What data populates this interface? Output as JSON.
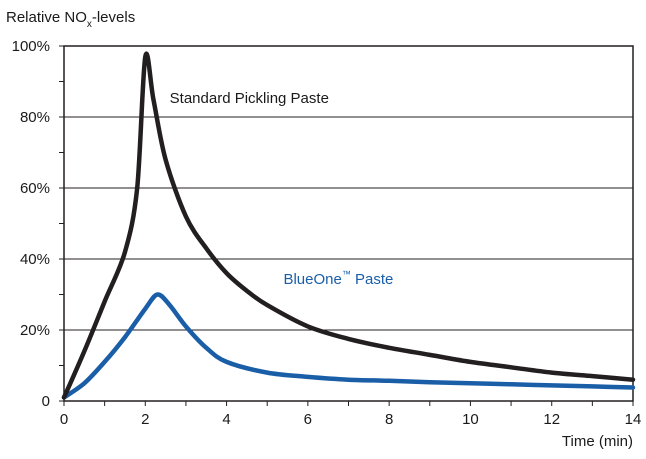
{
  "chart_data": {
    "type": "line",
    "ylabel": "Relative NO",
    "ylabel_sub": "x",
    "ylabel_suffix": "-levels",
    "xlabel": "Time (min)",
    "xlim": [
      0,
      14
    ],
    "ylim": [
      0,
      100
    ],
    "x_ticks": [
      0,
      2,
      4,
      6,
      8,
      10,
      12,
      14
    ],
    "x_tick_labels": [
      "0",
      "2",
      "4",
      "6",
      "8",
      "10",
      "12",
      "14"
    ],
    "y_ticks": [
      0,
      20,
      40,
      60,
      80,
      100
    ],
    "y_tick_labels": [
      "0",
      "20%",
      "40%",
      "60%",
      "80%",
      "100%"
    ],
    "grid": "horizontal",
    "series": [
      {
        "name": "Standard Pickling Paste",
        "color": "#231f20",
        "x": [
          0,
          0.5,
          1,
          1.5,
          1.8,
          2.0,
          2.2,
          2.5,
          3,
          3.5,
          4,
          4.5,
          5,
          6,
          7,
          8,
          9,
          10,
          11,
          12,
          13,
          14
        ],
        "y": [
          1,
          14,
          28,
          42,
          60,
          97,
          85,
          68,
          52,
          43,
          36,
          31,
          27,
          21,
          17.5,
          15,
          13,
          11,
          9.5,
          8,
          7,
          6
        ]
      },
      {
        "name": "BlueOne™ Paste",
        "color": "#1a5ea8",
        "x": [
          0,
          0.5,
          1,
          1.5,
          2,
          2.3,
          2.6,
          3,
          3.5,
          4,
          5,
          6,
          7,
          8,
          9,
          10,
          11,
          12,
          13,
          14
        ],
        "y": [
          1,
          5,
          11,
          18,
          26,
          30,
          27,
          21,
          15,
          11,
          8,
          6.8,
          6,
          5.7,
          5.3,
          5,
          4.7,
          4.4,
          4.1,
          3.8
        ]
      }
    ],
    "annotations": [
      {
        "text": "Standard Pickling Paste",
        "x": 2.6,
        "y": 84,
        "color": "#1a1a1a"
      },
      {
        "text": "BlueOne",
        "tm": "™",
        "suffix": " Paste",
        "x": 5.4,
        "y": 33,
        "color": "#1a5ea8"
      }
    ]
  }
}
